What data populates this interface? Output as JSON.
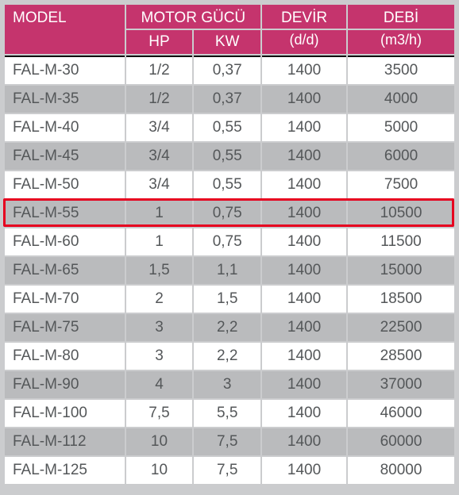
{
  "header": {
    "model": "MODEL",
    "motor_gucu": "MOTOR GÜCÜ",
    "hp": "HP",
    "kw": "KW",
    "devir": "DEVİR",
    "devir_unit": "(d/d)",
    "debi": "DEBİ",
    "debi_unit": "(m3/h)"
  },
  "columns": {
    "widths_pct": [
      27,
      15,
      15,
      19,
      24
    ],
    "header_bg": "#c5346d",
    "header_fg": "#ffffff",
    "row_bg": "#ffffff",
    "row_bg_alt": "#babbbd",
    "text_color": "#545759",
    "highlight_border": "#e6001f",
    "page_bg": "#cbccce",
    "top_rule": "#000000",
    "font_size_header": 19,
    "font_size_cell": 19
  },
  "highlight_row_index": 5,
  "rows": [
    {
      "model": "FAL-M-30",
      "hp": "1/2",
      "kw": "0,37",
      "devir": "1400",
      "debi": "3500",
      "alt": false
    },
    {
      "model": "FAL-M-35",
      "hp": "1/2",
      "kw": "0,37",
      "devir": "1400",
      "debi": "4000",
      "alt": true
    },
    {
      "model": "FAL-M-40",
      "hp": "3/4",
      "kw": "0,55",
      "devir": "1400",
      "debi": "5000",
      "alt": false
    },
    {
      "model": "FAL-M-45",
      "hp": "3/4",
      "kw": "0,55",
      "devir": "1400",
      "debi": "6000",
      "alt": true
    },
    {
      "model": "FAL-M-50",
      "hp": "3/4",
      "kw": "0,55",
      "devir": "1400",
      "debi": "7500",
      "alt": false
    },
    {
      "model": "FAL-M-55",
      "hp": "1",
      "kw": "0,75",
      "devir": "1400",
      "debi": "10500",
      "alt": true
    },
    {
      "model": "FAL-M-60",
      "hp": "1",
      "kw": "0,75",
      "devir": "1400",
      "debi": "11500",
      "alt": false
    },
    {
      "model": "FAL-M-65",
      "hp": "1,5",
      "kw": "1,1",
      "devir": "1400",
      "debi": "15000",
      "alt": true
    },
    {
      "model": "FAL-M-70",
      "hp": "2",
      "kw": "1,5",
      "devir": "1400",
      "debi": "18500",
      "alt": false
    },
    {
      "model": "FAL-M-75",
      "hp": "3",
      "kw": "2,2",
      "devir": "1400",
      "debi": "22500",
      "alt": true
    },
    {
      "model": "FAL-M-80",
      "hp": "3",
      "kw": "2,2",
      "devir": "1400",
      "debi": "28500",
      "alt": false
    },
    {
      "model": "FAL-M-90",
      "hp": "4",
      "kw": "3",
      "devir": "1400",
      "debi": "37000",
      "alt": true
    },
    {
      "model": "FAL-M-100",
      "hp": "7,5",
      "kw": "5,5",
      "devir": "1400",
      "debi": "46000",
      "alt": false
    },
    {
      "model": "FAL-M-112",
      "hp": "10",
      "kw": "7,5",
      "devir": "1400",
      "debi": "60000",
      "alt": true
    },
    {
      "model": "FAL-M-125",
      "hp": "10",
      "kw": "7,5",
      "devir": "1400",
      "debi": "80000",
      "alt": false
    }
  ]
}
